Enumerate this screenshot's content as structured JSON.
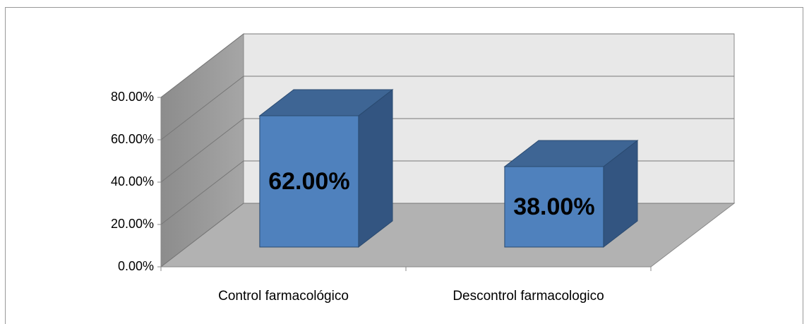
{
  "chart_data": {
    "type": "bar3d",
    "categories": [
      "Control farmacológico",
      "Descontrol farmacologico"
    ],
    "values": [
      62,
      38
    ],
    "value_labels": [
      "62.00%",
      "38.00%"
    ],
    "color": "#4f81bd",
    "ylim": [
      0,
      80
    ],
    "yticks": [
      {
        "value": 0,
        "label": "0.00%"
      },
      {
        "value": 20,
        "label": "20.00%"
      },
      {
        "value": 40,
        "label": "40.00%"
      },
      {
        "value": 60,
        "label": "60.00%"
      },
      {
        "value": 80,
        "label": "80.00%"
      }
    ],
    "grid": true
  }
}
